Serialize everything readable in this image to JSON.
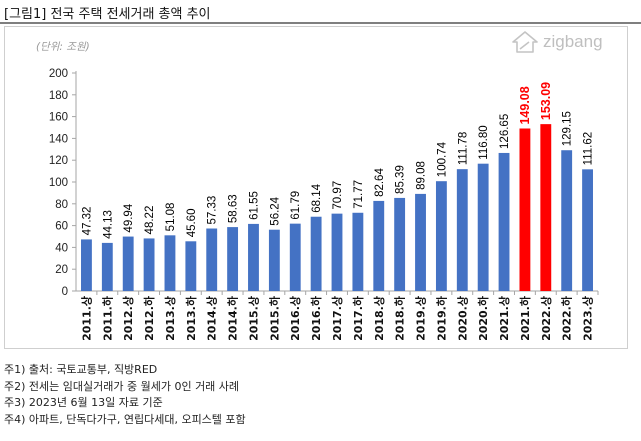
{
  "figure_title": "[그림1] 전국 주택 전세거래 총액 추이",
  "brand": {
    "name": "zigbang",
    "icon": "zigbang-logo-icon"
  },
  "colors": {
    "normal_bar": "#4472c4",
    "highlight_bar": "#ff0000",
    "label_normal": "#000000",
    "label_highlight": "#ff0000"
  },
  "chart_data": {
    "type": "bar",
    "title": "",
    "unit_label": "(단위: 조원)",
    "xlabel": "",
    "ylabel": "",
    "ylim": [
      0,
      200
    ],
    "yticks": [
      0,
      20,
      40,
      60,
      80,
      100,
      120,
      140,
      160,
      180,
      200
    ],
    "grid": false,
    "categories": [
      "2011.상",
      "2011.하",
      "2012.상",
      "2012.하",
      "2013.상",
      "2013.하",
      "2014.상",
      "2014.하",
      "2015.상",
      "2015.하",
      "2016.상",
      "2016.하",
      "2017.상",
      "2017.하",
      "2018.상",
      "2018.하",
      "2019.상",
      "2019.하",
      "2020.상",
      "2020.하",
      "2021.상",
      "2021.하",
      "2022.상",
      "2022.하",
      "2023.상"
    ],
    "values": [
      47.32,
      44.13,
      49.94,
      48.22,
      51.08,
      45.6,
      57.33,
      58.63,
      61.55,
      56.24,
      61.79,
      68.14,
      70.97,
      71.77,
      82.64,
      85.39,
      89.08,
      100.74,
      111.78,
      116.8,
      126.65,
      149.08,
      153.09,
      129.15,
      111.62
    ],
    "labels": [
      "47.32",
      "44.13",
      "49.94",
      "48.22",
      "51.08",
      "45.60",
      "57.33",
      "58.63",
      "61.55",
      "56.24",
      "61.79",
      "68.14",
      "70.97",
      "71.77",
      "82.64",
      "85.39",
      "89.08",
      "100.74",
      "111.78",
      "116.80",
      "126.65",
      "149.08",
      "153.09",
      "129.15",
      "111.62"
    ],
    "highlighted": [
      false,
      false,
      false,
      false,
      false,
      false,
      false,
      false,
      false,
      false,
      false,
      false,
      false,
      false,
      false,
      false,
      false,
      false,
      false,
      false,
      false,
      true,
      true,
      false,
      false
    ]
  },
  "notes": [
    "주1) 출처: 국토교통부, 직방RED",
    "주2) 전세는 임대실거래가 중 월세가 0인 거래 사례",
    "주3) 2023년 6월 13일 자료 기준",
    "주4) 아파트, 단독다가구, 연립다세대, 오피스텔 포함"
  ]
}
